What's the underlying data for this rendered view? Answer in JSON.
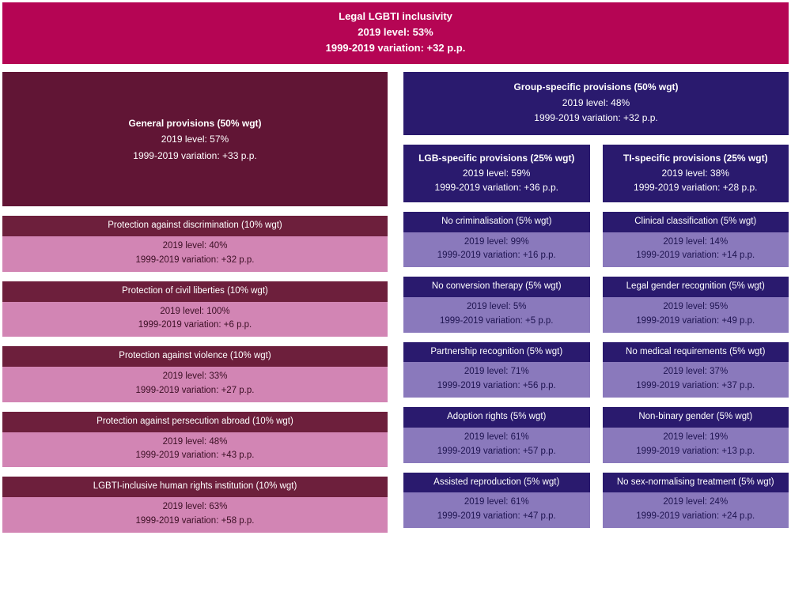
{
  "colors": {
    "topBanner": "#b50554",
    "generalBig": "#611535",
    "groupTop": "#2a1a6e",
    "subHeader": "#2a1a6e",
    "genItemHeader": "#6d1f3c",
    "genItemBody": "#d285b4",
    "genItemBodyText": "#3b0f24",
    "purpleItemHeader": "#2a1a6e",
    "purpleItemBody": "#8a79bc",
    "purpleItemBodyText": "#1e1450"
  },
  "top": {
    "title": "Legal LGBTI inclusivity",
    "level": "2019 level: 53%",
    "variation": "1999-2019 variation: +32 p.p."
  },
  "general": {
    "title": "General provisions (50% wgt)",
    "level": "2019 level: 57%",
    "variation": "1999-2019 variation: +33 p.p.",
    "items": [
      {
        "title": "Protection against discrimination (10% wgt)",
        "level": "2019 level: 40%",
        "variation": "1999-2019 variation: +32 p.p."
      },
      {
        "title": "Protection of civil liberties (10% wgt)",
        "level": "2019 level: 100%",
        "variation": "1999-2019 variation: +6 p.p."
      },
      {
        "title": "Protection against violence  (10% wgt)",
        "level": "2019 level: 33%",
        "variation": "1999-2019 variation: +27 p.p."
      },
      {
        "title": "Protection against persecution abroad (10% wgt)",
        "level": "2019 level: 48%",
        "variation": "1999-2019 variation: +43 p.p."
      },
      {
        "title": "LGBTI-inclusive human rights institution (10% wgt)",
        "level": "2019 level: 63%",
        "variation": "1999-2019 variation: +58 p.p."
      }
    ]
  },
  "group": {
    "title": "Group-specific provisions (50% wgt)",
    "level": "2019 level: 48%",
    "variation": "1999-2019 variation: +32 p.p.",
    "lgb": {
      "title": "LGB-specific provisions (25% wgt)",
      "level": "2019 level: 59%",
      "variation": "1999-2019 variation: +36 p.p.",
      "items": [
        {
          "title": "No criminalisation (5% wgt)",
          "level": "2019 level: 99%",
          "variation": "1999-2019 variation: +16 p.p."
        },
        {
          "title": "No conversion therapy (5% wgt)",
          "level": "2019 level: 5%",
          "variation": "1999-2019 variation: +5 p.p."
        },
        {
          "title": "Partnership recognition (5% wgt)",
          "level": "2019 level: 71%",
          "variation": "1999-2019 variation: +56 p.p."
        },
        {
          "title": "Adoption rights (5% wgt)",
          "level": "2019 level: 61%",
          "variation": "1999-2019 variation: +57 p.p."
        },
        {
          "title": "Assisted reproduction (5% wgt)",
          "level": "2019 level: 61%",
          "variation": "1999-2019 variation: +47 p.p."
        }
      ]
    },
    "ti": {
      "title": "TI-specific provisions (25% wgt)",
      "level": "2019 level: 38%",
      "variation": "1999-2019 variation: +28 p.p.",
      "items": [
        {
          "title": "Clinical classification (5% wgt)",
          "level": "2019 level: 14%",
          "variation": "1999-2019 variation: +14 p.p."
        },
        {
          "title": "Legal gender recognition (5% wgt)",
          "level": "2019 level: 95%",
          "variation": "1999-2019 variation: +49 p.p."
        },
        {
          "title": "No medical requirements (5% wgt)",
          "level": "2019 level: 37%",
          "variation": "1999-2019 variation: +37 p.p."
        },
        {
          "title": "Non-binary gender (5% wgt)",
          "level": "2019 level: 19%",
          "variation": "1999-2019 variation: +13 p.p."
        },
        {
          "title": "No sex-normalising treatment (5% wgt)",
          "level": "2019 level: 24%",
          "variation": "1999-2019 variation: +24 p.p."
        }
      ]
    }
  }
}
